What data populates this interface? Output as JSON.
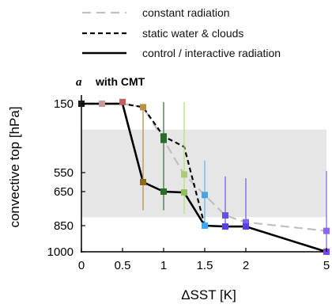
{
  "chart_data": {
    "type": "line",
    "panel_letter": "a",
    "panel_title": "with CMT",
    "xlabel": "ΔSST [K]",
    "ylabel": "convective top [hPa]",
    "x_ticks": [
      {
        "value": 0,
        "label": "0"
      },
      {
        "value": 0.5,
        "label": "0.5"
      },
      {
        "value": 1,
        "label": "1"
      },
      {
        "value": 1.5,
        "label": "1.5"
      },
      {
        "value": 2,
        "label": "2"
      },
      {
        "value": 5,
        "label": "5"
      }
    ],
    "y_ticks": [
      {
        "value": 150,
        "label": "150"
      },
      {
        "value": 550,
        "label": "550"
      },
      {
        "value": 650,
        "label": "650"
      },
      {
        "value": 850,
        "label": "850"
      },
      {
        "value": 1000,
        "label": "1000"
      }
    ],
    "ylim": [
      1000,
      150
    ],
    "x_axis_break": "between 2 and 5",
    "shaded_band": {
      "from": 300,
      "to": 800,
      "color": "#e6e6e6"
    },
    "legend": {
      "position": "top",
      "entries": [
        {
          "label": "constant radiation",
          "style": "dashed-gray"
        },
        {
          "label": "static water & clouds",
          "style": "dashed-black"
        },
        {
          "label": "control / interactive radiation",
          "style": "solid-black"
        }
      ]
    },
    "series": [
      {
        "name": "constant radiation",
        "color": "#c0c0c0",
        "dash": "long",
        "x": [
          0,
          0.25,
          0.5,
          0.75,
          1,
          1.25,
          1.5,
          1.75,
          2,
          5
        ],
        "y": [
          150,
          150,
          150,
          170,
          360,
          560,
          670,
          790,
          830,
          880
        ]
      },
      {
        "name": "static water & clouds",
        "color": "#000000",
        "dash": "short",
        "x": [
          0,
          0.25,
          0.5,
          0.75,
          1,
          1.25,
          1.5
        ],
        "y": [
          150,
          150,
          150,
          170,
          340,
          400,
          850
        ]
      },
      {
        "name": "control / interactive radiation",
        "color": "#000000",
        "dash": "none",
        "x": [
          0,
          0.25,
          0.5,
          0.75,
          1,
          1.25,
          1.5,
          1.75,
          2,
          5
        ],
        "y": [
          150,
          150,
          150,
          600,
          650,
          655,
          850,
          855,
          855,
          1000
        ]
      }
    ],
    "markers": [
      {
        "x": 0,
        "y": 150,
        "color": "#1a1a1a"
      },
      {
        "x": 0.25,
        "y": 150,
        "color": "#c89a9a"
      },
      {
        "x": 0.5,
        "y": 140,
        "color": "#c06060"
      },
      {
        "x": 0.75,
        "y": 170,
        "color": "#b89240"
      },
      {
        "x": 0.75,
        "y": 600,
        "color": "#8c6a18"
      },
      {
        "x": 1,
        "y": 340,
        "color": "#2d6b2d"
      },
      {
        "x": 1,
        "y": 360,
        "color": "#2d6b2d"
      },
      {
        "x": 1,
        "y": 650,
        "color": "#2d6b2d"
      },
      {
        "x": 1.25,
        "y": 560,
        "color": "#a8cc7a"
      },
      {
        "x": 1.25,
        "y": 655,
        "color": "#8fbf5f"
      },
      {
        "x": 1.5,
        "y": 670,
        "color": "#4aa3e0"
      },
      {
        "x": 1.5,
        "y": 850,
        "color": "#33aaff"
      },
      {
        "x": 1.75,
        "y": 790,
        "color": "#6a4ee0"
      },
      {
        "x": 1.75,
        "y": 855,
        "color": "#5a3ee0"
      },
      {
        "x": 2,
        "y": 830,
        "color": "#7a66e8"
      },
      {
        "x": 2,
        "y": 855,
        "color": "#5a3ee0"
      },
      {
        "x": 5,
        "y": 880,
        "color": "#8a66ee"
      },
      {
        "x": 5,
        "y": 1000,
        "color": "#7a44ee"
      }
    ],
    "error_bars": [
      {
        "x": 0.75,
        "low": 170,
        "high": 760,
        "color": "#b89240"
      },
      {
        "x": 1,
        "low": 140,
        "high": 760,
        "color": "#3a7a3a"
      },
      {
        "x": 1.25,
        "low": 140,
        "high": 780,
        "color": "#b8dd8a"
      },
      {
        "x": 1.5,
        "low": 480,
        "high": 860,
        "color": "#66b8f0"
      },
      {
        "x": 1.75,
        "low": 570,
        "high": 860,
        "color": "#7a5ef0"
      },
      {
        "x": 2,
        "low": 580,
        "high": 860,
        "color": "#7a5ef0"
      },
      {
        "x": 5,
        "low": 540,
        "high": 1000,
        "color": "#8a6af0"
      }
    ]
  }
}
